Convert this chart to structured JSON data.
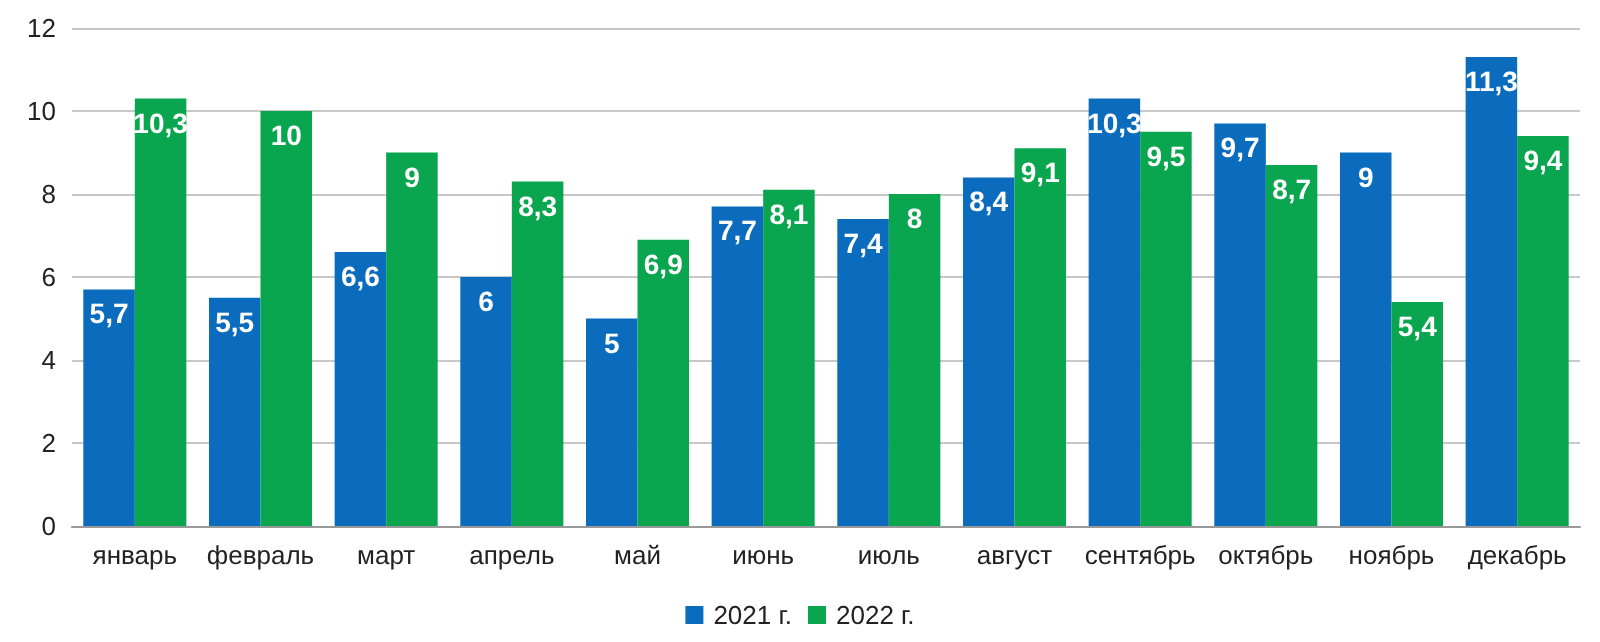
{
  "chart_data": {
    "type": "bar",
    "categories": [
      "январь",
      "февраль",
      "март",
      "апрель",
      "май",
      "июнь",
      "июль",
      "август",
      "сентябрь",
      "октябрь",
      "ноябрь",
      "декабрь"
    ],
    "series": [
      {
        "name": "2021 г.",
        "color": "#0b6cbd",
        "values": [
          5.7,
          5.5,
          6.6,
          6,
          5,
          7.7,
          7.4,
          8.4,
          10.3,
          9.7,
          9,
          11.3
        ],
        "value_labels": [
          "5,7",
          "5,5",
          "6,6",
          "6",
          "5",
          "7,7",
          "7,4",
          "8,4",
          "10,3",
          "9,7",
          "9",
          "11,3"
        ]
      },
      {
        "name": "2022 г.",
        "color": "#0aa54f",
        "values": [
          10.3,
          10,
          9,
          8.3,
          6.9,
          8.1,
          8,
          9.1,
          9.5,
          8.7,
          5.4,
          9.4
        ],
        "value_labels": [
          "10,3",
          "10",
          "9",
          "8,3",
          "6,9",
          "8,1",
          "8",
          "9,1",
          "9,5",
          "8,7",
          "5,4",
          "9,4"
        ]
      }
    ],
    "ylim": [
      0,
      12
    ],
    "yticks": [
      0,
      2,
      4,
      6,
      8,
      10,
      12
    ],
    "grid": "y",
    "legend": "bottom"
  }
}
